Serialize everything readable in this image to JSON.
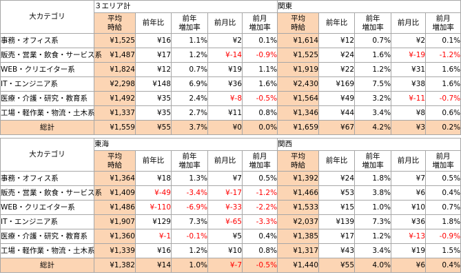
{
  "category_header": "大カテゴリ",
  "column_headers": {
    "avg_wage": [
      "平均",
      "時給"
    ],
    "yoy": [
      "前年比"
    ],
    "yoy_rate": [
      "前年",
      "増加率"
    ],
    "mom": [
      "前月比"
    ],
    "mom_rate": [
      "前月",
      "増加率"
    ]
  },
  "blocks": [
    {
      "regions": [
        {
          "name": "３エリア計",
          "rows": [
            {
              "avg": "¥1,525",
              "yoy": "¥16",
              "yoy_rate": "1.1%",
              "mom": "¥2",
              "mom_rate": "0.1%"
            },
            {
              "avg": "¥1,487",
              "yoy": "¥17",
              "yoy_rate": "1.2%",
              "mom": "¥-14",
              "mom_rate": "-0.9%"
            },
            {
              "avg": "¥1,824",
              "yoy": "¥12",
              "yoy_rate": "0.7%",
              "mom": "¥19",
              "mom_rate": "1.1%"
            },
            {
              "avg": "¥2,298",
              "yoy": "¥148",
              "yoy_rate": "6.9%",
              "mom": "¥36",
              "mom_rate": "1.6%"
            },
            {
              "avg": "¥1,492",
              "yoy": "¥35",
              "yoy_rate": "2.4%",
              "mom": "¥-8",
              "mom_rate": "-0.5%"
            },
            {
              "avg": "¥1,337",
              "yoy": "¥35",
              "yoy_rate": "2.7%",
              "mom": "¥11",
              "mom_rate": "0.8%"
            }
          ],
          "total": {
            "avg": "¥1,559",
            "yoy": "¥55",
            "yoy_rate": "3.7%",
            "mom": "¥0",
            "mom_rate": "0.0%"
          }
        },
        {
          "name": "関東",
          "rows": [
            {
              "avg": "¥1,614",
              "yoy": "¥12",
              "yoy_rate": "0.7%",
              "mom": "¥2",
              "mom_rate": "0.1%"
            },
            {
              "avg": "¥1,525",
              "yoy": "¥24",
              "yoy_rate": "1.6%",
              "mom": "¥-19",
              "mom_rate": "-1.2%"
            },
            {
              "avg": "¥1,919",
              "yoy": "¥22",
              "yoy_rate": "1.2%",
              "mom": "¥31",
              "mom_rate": "1.6%"
            },
            {
              "avg": "¥2,430",
              "yoy": "¥169",
              "yoy_rate": "7.5%",
              "mom": "¥38",
              "mom_rate": "1.6%"
            },
            {
              "avg": "¥1,564",
              "yoy": "¥49",
              "yoy_rate": "3.2%",
              "mom": "¥-11",
              "mom_rate": "-0.7%"
            },
            {
              "avg": "¥1,346",
              "yoy": "¥44",
              "yoy_rate": "3.4%",
              "mom": "¥8",
              "mom_rate": "0.6%"
            }
          ],
          "total": {
            "avg": "¥1,659",
            "yoy": "¥67",
            "yoy_rate": "4.2%",
            "mom": "¥3",
            "mom_rate": "0.2%"
          }
        }
      ]
    },
    {
      "regions": [
        {
          "name": "東海",
          "rows": [
            {
              "avg": "¥1,364",
              "yoy": "¥18",
              "yoy_rate": "1.3%",
              "mom": "¥7",
              "mom_rate": "0.5%"
            },
            {
              "avg": "¥1,409",
              "yoy": "¥-49",
              "yoy_rate": "-3.4%",
              "mom": "¥-17",
              "mom_rate": "-1.2%"
            },
            {
              "avg": "¥1,486",
              "yoy": "¥-110",
              "yoy_rate": "-6.9%",
              "mom": "¥-33",
              "mom_rate": "-2.2%"
            },
            {
              "avg": "¥1,907",
              "yoy": "¥129",
              "yoy_rate": "7.3%",
              "mom": "¥-65",
              "mom_rate": "-3.3%"
            },
            {
              "avg": "¥1,360",
              "yoy": "¥-1",
              "yoy_rate": "-0.1%",
              "mom": "¥5",
              "mom_rate": "0.4%"
            },
            {
              "avg": "¥1,339",
              "yoy": "¥16",
              "yoy_rate": "1.2%",
              "mom": "¥10",
              "mom_rate": "0.8%"
            }
          ],
          "total": {
            "avg": "¥1,382",
            "yoy": "¥14",
            "yoy_rate": "1.0%",
            "mom": "¥-7",
            "mom_rate": "-0.5%"
          }
        },
        {
          "name": "関西",
          "rows": [
            {
              "avg": "¥1,392",
              "yoy": "¥24",
              "yoy_rate": "1.8%",
              "mom": "¥7",
              "mom_rate": "0.5%"
            },
            {
              "avg": "¥1,466",
              "yoy": "¥53",
              "yoy_rate": "3.8%",
              "mom": "¥6",
              "mom_rate": "0.4%"
            },
            {
              "avg": "¥1,533",
              "yoy": "¥15",
              "yoy_rate": "1.0%",
              "mom": "¥10",
              "mom_rate": "0.7%"
            },
            {
              "avg": "¥2,037",
              "yoy": "¥139",
              "yoy_rate": "7.3%",
              "mom": "¥36",
              "mom_rate": "1.8%"
            },
            {
              "avg": "¥1,385",
              "yoy": "¥17",
              "yoy_rate": "1.2%",
              "mom": "¥-13",
              "mom_rate": "-0.9%"
            },
            {
              "avg": "¥1,317",
              "yoy": "¥43",
              "yoy_rate": "3.4%",
              "mom": "¥19",
              "mom_rate": "1.5%"
            }
          ],
          "total": {
            "avg": "¥1,440",
            "yoy": "¥55",
            "yoy_rate": "4.0%",
            "mom": "¥6",
            "mom_rate": "0.4%"
          }
        }
      ]
    }
  ],
  "categories": [
    "事務・オフィス系",
    "販売・営業・飲食・サービス系",
    "WEB・クリエイター系",
    "IT・エンジニア系",
    "医療・介護・研究・教育系",
    "工場・軽作業・物流・土木系"
  ],
  "total_label": "総計",
  "colors": {
    "peach_fill": "#fcd5b4",
    "negative_text": "#ff0000",
    "border": "#a6a6a6"
  }
}
